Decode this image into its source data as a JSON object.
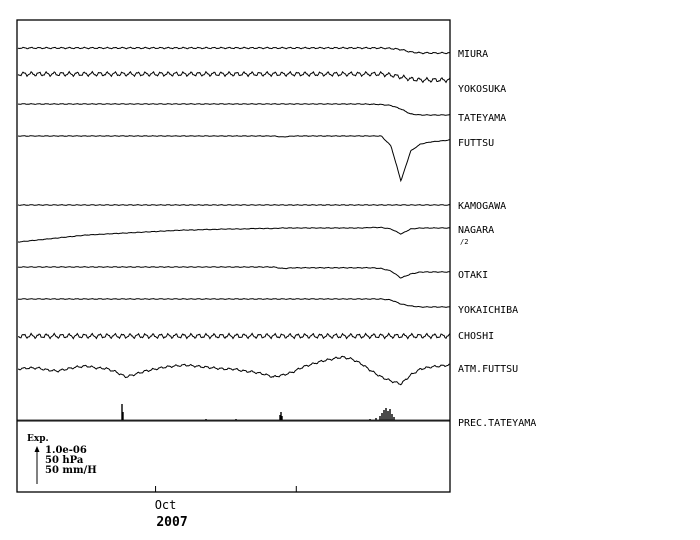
{
  "chart_data": {
    "type": "line",
    "x_axis": {
      "ticks": [
        {
          "label": "Oct",
          "position": 0.32
        },
        {
          "label": "",
          "position": 0.645
        }
      ],
      "year_label": "2007"
    },
    "scale_legend": {
      "title": "Exp.",
      "lines": [
        "1.0e-06",
        "50 hPa",
        "50 mm/H"
      ]
    },
    "series": [
      {
        "name": "MIURA",
        "sub": "",
        "values": [
          0,
          0,
          0,
          0,
          0,
          0,
          0,
          0,
          0,
          0,
          0,
          0,
          0,
          0,
          0,
          0,
          0,
          0,
          0,
          0,
          0,
          0,
          0,
          0,
          0,
          0,
          0,
          0,
          0,
          0,
          0,
          0,
          0,
          0,
          0,
          0,
          0,
          0,
          0.5,
          1.5,
          4,
          5,
          5,
          5,
          5
        ],
        "wiggle": 0.8
      },
      {
        "name": "YOKOSUKA",
        "sub": "",
        "values": [
          0,
          0,
          0,
          0,
          0,
          0,
          0,
          0,
          0,
          0,
          0,
          0,
          0,
          0,
          0,
          0,
          0,
          0,
          0,
          0,
          0,
          0,
          0,
          0,
          0,
          0,
          0,
          0,
          0,
          0,
          0,
          0,
          0,
          0,
          0,
          0,
          0,
          0,
          1,
          3,
          5,
          6,
          6,
          6,
          6
        ],
        "wiggle": 2.4
      },
      {
        "name": "TATEYAMA",
        "sub": "",
        "values": [
          0,
          0,
          0,
          0,
          0,
          0,
          0,
          0,
          0,
          0,
          0,
          0,
          0,
          0,
          0,
          0,
          0,
          0,
          0,
          0,
          0,
          0,
          0,
          0,
          0,
          0,
          0,
          0,
          0,
          0,
          0,
          0,
          0,
          0,
          0,
          0,
          0.2,
          0.5,
          1.5,
          5,
          10,
          11,
          11,
          11,
          11
        ],
        "wiggle": 0.4
      },
      {
        "name": "FUTTSU",
        "sub": "",
        "values": [
          0,
          0,
          0,
          0,
          0,
          0,
          0,
          0,
          0,
          0,
          0,
          0,
          0,
          0,
          0,
          0,
          0,
          0,
          0,
          0,
          0,
          0,
          0,
          0,
          0,
          0,
          0,
          1,
          0,
          0,
          0,
          0,
          0,
          0,
          0,
          0,
          0,
          0,
          10,
          45,
          15,
          8,
          6,
          5,
          4
        ],
        "wiggle": 0.3
      },
      {
        "name": "KAMOGAWA",
        "sub": "",
        "values": [
          0,
          0,
          0,
          0,
          0,
          0,
          0,
          0,
          0,
          0,
          0,
          0,
          0,
          0,
          0,
          0,
          0,
          0,
          0,
          0,
          0,
          0,
          0,
          0,
          0,
          0,
          0,
          0,
          0,
          0,
          0,
          0,
          0,
          0,
          0,
          0,
          0,
          0,
          0,
          0,
          0,
          0,
          0,
          0,
          0
        ],
        "wiggle": 0.4
      },
      {
        "name": "NAGARA",
        "sub": "/2",
        "values": [
          0,
          -1,
          -2,
          -3,
          -4,
          -5,
          -6,
          -7,
          -7.5,
          -8,
          -8.5,
          -9,
          -9.5,
          -10,
          -10.5,
          -11,
          -11.5,
          -12,
          -12,
          -12.5,
          -12.5,
          -13,
          -13,
          -13,
          -13.5,
          -13.5,
          -13.5,
          -14,
          -14,
          -14,
          -14,
          -14,
          -14,
          -14,
          -14,
          -14,
          -14.5,
          -14.5,
          -13,
          -8,
          -13,
          -14,
          -14,
          -14,
          -14
        ],
        "wiggle": 0.3
      },
      {
        "name": "OTAKI",
        "sub": "",
        "values": [
          0,
          0,
          0,
          0,
          0,
          0,
          0,
          0,
          0,
          0,
          0,
          0,
          0,
          0,
          0,
          0,
          0,
          0,
          0,
          0,
          0,
          0,
          0,
          0,
          0,
          0,
          0,
          1.5,
          0.8,
          0.8,
          0.8,
          0.8,
          0.8,
          0.8,
          0.8,
          0.8,
          0.8,
          1.5,
          4,
          11,
          7,
          5,
          5,
          5,
          5
        ],
        "wiggle": 0.4
      },
      {
        "name": "YOKAICHIBA",
        "sub": "",
        "values": [
          0,
          0,
          0,
          0,
          0,
          0,
          0,
          0,
          0,
          0,
          0,
          0,
          0,
          0,
          0,
          0,
          0,
          0,
          0,
          0,
          0,
          0,
          0,
          0,
          0,
          0,
          0,
          0,
          0,
          0,
          0,
          0,
          0,
          0,
          0,
          0,
          0,
          0,
          1,
          5,
          7,
          8,
          8,
          8,
          8
        ],
        "wiggle": 0.4
      },
      {
        "name": "CHOSHI",
        "sub": "",
        "values": [
          0,
          0,
          0,
          0,
          0,
          0,
          0,
          0,
          0,
          0,
          0,
          0,
          0,
          0,
          0,
          0,
          0,
          0,
          0,
          0,
          0,
          0,
          0,
          0,
          0,
          0,
          0,
          0,
          0,
          0,
          0,
          0,
          0,
          0,
          0,
          0,
          0,
          0,
          0,
          0,
          0,
          0,
          0,
          0,
          0
        ],
        "wiggle": 2.6
      },
      {
        "name": "ATM.FUTTSU",
        "sub": "",
        "values": [
          0,
          -1,
          -1,
          1,
          2,
          0,
          -2,
          -3,
          -1,
          -0.5,
          3,
          8,
          5,
          2,
          0,
          -2,
          -3,
          -4,
          -3,
          -2,
          -1,
          0,
          0,
          2,
          3,
          5,
          8,
          6,
          3,
          -2,
          -5,
          -8,
          -10,
          -12,
          -10,
          -5,
          2,
          8,
          12,
          15,
          6,
          0,
          -2,
          -3,
          -4
        ],
        "wiggle": 1.2
      },
      {
        "name": "PREC.TATEYAMA",
        "sub": "",
        "values": [],
        "wiggle": 0
      }
    ]
  }
}
